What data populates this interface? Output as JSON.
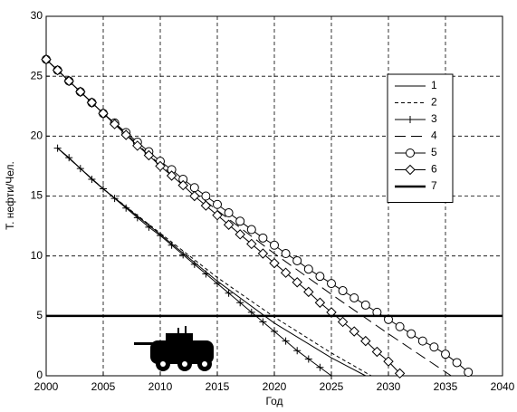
{
  "chart_data": {
    "type": "line",
    "xlabel": "Год",
    "ylabel": "Т. нефти/Чел.",
    "xlim": [
      2000,
      2040
    ],
    "ylim": [
      0,
      30
    ],
    "xticks": [
      2000,
      2005,
      2010,
      2015,
      2020,
      2025,
      2030,
      2035,
      2040
    ],
    "yticks": [
      0,
      5,
      10,
      15,
      20,
      25,
      30
    ],
    "grid": true,
    "legend": "upper right",
    "series": [
      {
        "name": "1",
        "color": "#000000",
        "linestyle": "solid",
        "marker": "none",
        "linewidth": 1,
        "x": [
          2001,
          2005,
          2010,
          2015,
          2020,
          2025,
          2028
        ],
        "values": [
          19,
          15.6,
          11.8,
          7.9,
          4.4,
          1.5,
          0
        ]
      },
      {
        "name": "2",
        "color": "#000000",
        "linestyle": "dashed",
        "marker": "none",
        "linewidth": 1,
        "x": [
          2001,
          2005,
          2010,
          2015,
          2020,
          2025,
          2028.5
        ],
        "values": [
          19,
          15.6,
          11.9,
          8.2,
          4.9,
          1.9,
          0
        ]
      },
      {
        "name": "3",
        "color": "#000000",
        "linestyle": "solid",
        "marker": "+",
        "linewidth": 1,
        "x": [
          2001,
          2002,
          2003,
          2004,
          2005,
          2006,
          2007,
          2008,
          2009,
          2010,
          2011,
          2012,
          2013,
          2014,
          2015,
          2016,
          2017,
          2018,
          2019,
          2020,
          2021,
          2022,
          2023,
          2024,
          2025
        ],
        "values": [
          19,
          18.2,
          17.3,
          16.4,
          15.6,
          14.8,
          14,
          13.2,
          12.4,
          11.7,
          10.9,
          10.1,
          9.3,
          8.5,
          7.7,
          6.9,
          6.1,
          5.3,
          4.5,
          3.7,
          2.9,
          2.1,
          1.4,
          0.7,
          0
        ]
      },
      {
        "name": "4",
        "color": "#000000",
        "linestyle": "longdash",
        "marker": "none",
        "linewidth": 1,
        "x": [
          2000,
          2005,
          2010,
          2015,
          2020,
          2025,
          2030,
          2035.5
        ],
        "values": [
          26.4,
          21.9,
          17.6,
          13.8,
          10.2,
          6.8,
          3.5,
          0
        ]
      },
      {
        "name": "5",
        "color": "#000000",
        "linestyle": "solid",
        "marker": "o",
        "linewidth": 1,
        "x": [
          2000,
          2001,
          2002,
          2003,
          2004,
          2005,
          2006,
          2007,
          2008,
          2009,
          2010,
          2011,
          2012,
          2013,
          2014,
          2015,
          2016,
          2017,
          2018,
          2019,
          2020,
          2021,
          2022,
          2023,
          2024,
          2025,
          2026,
          2027,
          2028,
          2029,
          2030,
          2031,
          2032,
          2033,
          2034,
          2035,
          2036,
          2037
        ],
        "values": [
          26.4,
          25.5,
          24.6,
          23.7,
          22.8,
          21.9,
          21.1,
          20.3,
          19.5,
          18.7,
          17.9,
          17.2,
          16.4,
          15.7,
          15,
          14.3,
          13.6,
          12.9,
          12.2,
          11.5,
          10.9,
          10.2,
          9.6,
          8.9,
          8.3,
          7.7,
          7.1,
          6.5,
          5.9,
          5.3,
          4.7,
          4.1,
          3.5,
          2.9,
          2.4,
          1.8,
          1.1,
          0.3
        ]
      },
      {
        "name": "6",
        "color": "#000000",
        "linestyle": "solid",
        "marker": "d",
        "linewidth": 1,
        "x": [
          2000,
          2001,
          2002,
          2003,
          2004,
          2005,
          2006,
          2007,
          2008,
          2009,
          2010,
          2011,
          2012,
          2013,
          2014,
          2015,
          2016,
          2017,
          2018,
          2019,
          2020,
          2021,
          2022,
          2023,
          2024,
          2025,
          2026,
          2027,
          2028,
          2029,
          2030,
          2031
        ],
        "values": [
          26.4,
          25.5,
          24.6,
          23.7,
          22.8,
          21.9,
          21,
          20.1,
          19.2,
          18.4,
          17.5,
          16.7,
          15.9,
          15,
          14.2,
          13.4,
          12.6,
          11.8,
          11,
          10.2,
          9.4,
          8.6,
          7.8,
          7,
          6.1,
          5.3,
          4.5,
          3.7,
          2.9,
          2,
          1.2,
          0.2
        ]
      },
      {
        "name": "7",
        "color": "#000000",
        "linestyle": "solid",
        "marker": "none",
        "linewidth": 2.5,
        "x": [
          2000,
          2040
        ],
        "values": [
          5,
          5
        ]
      }
    ]
  }
}
